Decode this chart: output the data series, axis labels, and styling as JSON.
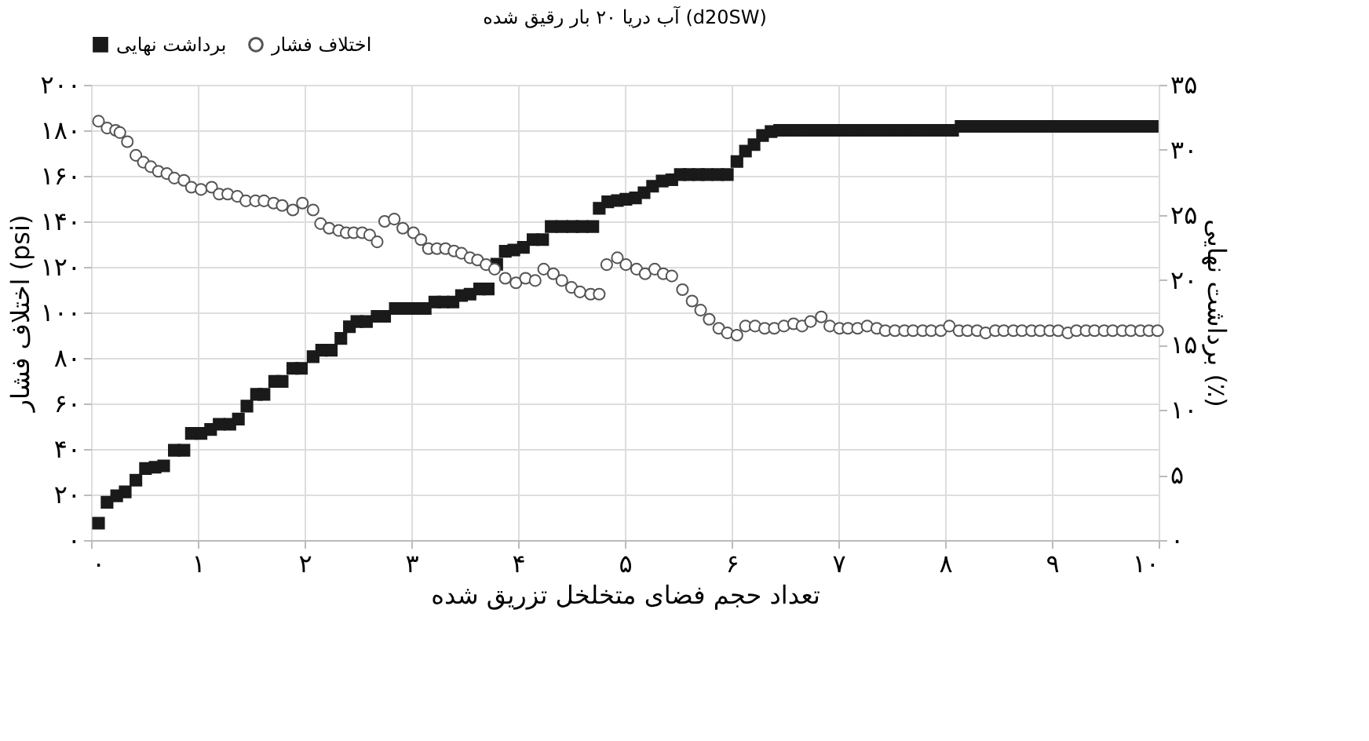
{
  "chart_data": {
    "type": "scatter",
    "title": "آب دریا ۲۰ بار رقیق شده (d20SW)",
    "xlabel": "تعداد حجم فضای متخلخل تزریق شده",
    "ylabel": "اختلاف فشار (psi)",
    "y2label": "برداشت نهایی (٪)",
    "xlim": [
      0,
      10
    ],
    "ylim": [
      0,
      200
    ],
    "y2lim": [
      0,
      35
    ],
    "xticks": [
      {
        "value": 0,
        "label": "۰"
      },
      {
        "value": 1,
        "label": "۱"
      },
      {
        "value": 2,
        "label": "۲"
      },
      {
        "value": 3,
        "label": "۳"
      },
      {
        "value": 4,
        "label": "۴"
      },
      {
        "value": 5,
        "label": "۵"
      },
      {
        "value": 6,
        "label": "۶"
      },
      {
        "value": 7,
        "label": "۷"
      },
      {
        "value": 8,
        "label": "۸"
      },
      {
        "value": 9,
        "label": "۹"
      },
      {
        "value": 10,
        "label": "۱۰"
      }
    ],
    "yticks": [
      {
        "value": 0,
        "label": "۰"
      },
      {
        "value": 20,
        "label": "۲۰"
      },
      {
        "value": 40,
        "label": "۴۰"
      },
      {
        "value": 60,
        "label": "۶۰"
      },
      {
        "value": 80,
        "label": "۸۰"
      },
      {
        "value": 100,
        "label": "۱۰۰"
      },
      {
        "value": 120,
        "label": "۱۲۰"
      },
      {
        "value": 140,
        "label": "۱۴۰"
      },
      {
        "value": 160,
        "label": "۱۶۰"
      },
      {
        "value": 180,
        "label": "۱۸۰"
      },
      {
        "value": 200,
        "label": "۲۰۰"
      }
    ],
    "y2ticks": [
      {
        "value": 0,
        "label": "۰"
      },
      {
        "value": 5,
        "label": "۵"
      },
      {
        "value": 10,
        "label": "۱۰"
      },
      {
        "value": 15,
        "label": "۱۵"
      },
      {
        "value": 20,
        "label": "۲۰"
      },
      {
        "value": 25,
        "label": "۲۵"
      },
      {
        "value": 30,
        "label": "۳۰"
      },
      {
        "value": 35,
        "label": "۳۵"
      }
    ],
    "grid": true,
    "legend": "top",
    "series": [
      {
        "name": "برداشت نهایی",
        "color": "#1a1a1a",
        "marker": "square",
        "axis": "y2",
        "x": [
          0.07,
          0.15,
          0.24,
          0.32,
          0.42,
          0.51,
          0.6,
          0.68,
          0.78,
          0.87,
          0.94,
          1.03,
          1.12,
          1.2,
          1.3,
          1.38,
          1.46,
          1.55,
          1.62,
          1.72,
          1.79,
          1.89,
          1.97,
          2.08,
          2.16,
          2.25,
          2.34,
          2.42,
          2.49,
          2.58,
          2.68,
          2.75,
          2.85,
          2.94,
          3.04,
          3.13,
          3.22,
          3.3,
          3.39,
          3.47,
          3.55,
          3.64,
          3.72,
          3.8,
          3.88,
          3.96,
          4.05,
          4.14,
          4.23,
          4.31,
          4.41,
          4.51,
          4.6,
          4.7,
          4.76,
          4.84,
          4.93,
          5.01,
          5.1,
          5.18,
          5.26,
          5.35,
          5.44,
          5.52,
          5.6,
          5.69,
          5.77,
          5.87,
          5.96,
          6.05,
          6.13,
          6.21,
          6.29,
          6.37,
          6.45,
          6.54,
          6.62,
          6.71,
          6.79,
          6.88,
          6.96,
          7.05,
          7.13,
          7.22,
          7.3,
          7.39,
          7.47,
          7.56,
          7.64,
          7.73,
          7.81,
          7.9,
          7.98,
          8.07,
          8.15,
          8.24,
          8.32,
          8.41,
          8.49,
          8.58,
          8.66,
          8.75,
          8.83,
          8.92,
          9.0,
          9.09,
          9.17,
          9.26,
          9.34,
          9.43,
          9.51,
          9.6,
          9.68,
          9.77,
          9.85,
          9.94
        ],
        "values": [
          1.3,
          2.9,
          3.4,
          3.7,
          4.6,
          5.5,
          5.6,
          5.7,
          6.9,
          6.9,
          8.2,
          8.2,
          8.5,
          8.9,
          8.9,
          9.3,
          10.3,
          11.2,
          11.2,
          12.2,
          12.2,
          13.2,
          13.2,
          14.1,
          14.6,
          14.6,
          15.5,
          16.4,
          16.8,
          16.8,
          17.2,
          17.2,
          17.8,
          17.8,
          17.8,
          17.8,
          18.3,
          18.3,
          18.3,
          18.8,
          18.9,
          19.3,
          19.3,
          21.2,
          22.2,
          22.3,
          22.5,
          23.1,
          23.1,
          24.1,
          24.1,
          24.1,
          24.1,
          24.1,
          25.5,
          26.0,
          26.1,
          26.2,
          26.3,
          26.7,
          27.2,
          27.6,
          27.7,
          28.1,
          28.1,
          28.1,
          28.1,
          28.1,
          28.1,
          29.1,
          29.9,
          30.4,
          31.1,
          31.4,
          31.5,
          31.5,
          31.5,
          31.5,
          31.5,
          31.5,
          31.5,
          31.5,
          31.5,
          31.5,
          31.5,
          31.5,
          31.5,
          31.5,
          31.5,
          31.5,
          31.5,
          31.5,
          31.5,
          31.5,
          31.8,
          31.8,
          31.8,
          31.8,
          31.8,
          31.8,
          31.8,
          31.8,
          31.8,
          31.8,
          31.8,
          31.8,
          31.8,
          31.8,
          31.8,
          31.8,
          31.8,
          31.8,
          31.8,
          31.8,
          31.8,
          31.8
        ]
      },
      {
        "name": "اختلاف فشار",
        "color": "#555555",
        "marker": "circle",
        "axis": "y",
        "x": [
          0.07,
          0.15,
          0.23,
          0.27,
          0.34,
          0.42,
          0.49,
          0.56,
          0.63,
          0.71,
          0.78,
          0.87,
          0.94,
          1.03,
          1.13,
          1.2,
          1.28,
          1.37,
          1.45,
          1.54,
          1.62,
          1.71,
          1.79,
          1.89,
          1.98,
          2.08,
          2.15,
          2.23,
          2.32,
          2.39,
          2.46,
          2.54,
          2.61,
          2.68,
          2.75,
          2.84,
          2.92,
          3.02,
          3.09,
          3.16,
          3.24,
          3.32,
          3.4,
          3.47,
          3.55,
          3.62,
          3.7,
          3.78,
          3.88,
          3.98,
          4.07,
          4.16,
          4.24,
          4.33,
          4.41,
          4.5,
          4.58,
          4.68,
          4.76,
          4.83,
          4.93,
          5.01,
          5.11,
          5.19,
          5.28,
          5.36,
          5.44,
          5.54,
          5.63,
          5.71,
          5.79,
          5.88,
          5.96,
          6.05,
          6.13,
          6.22,
          6.31,
          6.4,
          6.49,
          6.58,
          6.66,
          6.74,
          6.84,
          6.92,
          7.01,
          7.09,
          7.18,
          7.27,
          7.36,
          7.44,
          7.53,
          7.62,
          7.7,
          7.79,
          7.87,
          7.96,
          8.04,
          8.13,
          8.21,
          8.3,
          8.38,
          8.47,
          8.55,
          8.64,
          8.72,
          8.81,
          8.89,
          8.98,
          9.06,
          9.15,
          9.23,
          9.32,
          9.4,
          9.49,
          9.57,
          9.66,
          9.74,
          9.83,
          9.91,
          9.99
        ],
        "values": [
          184,
          181,
          180,
          179,
          175,
          169,
          166,
          164,
          162,
          161,
          159,
          158,
          155,
          154,
          155,
          152,
          152,
          151,
          149,
          149,
          149,
          148,
          147,
          145,
          148,
          145,
          139,
          137,
          136,
          135,
          135,
          135,
          134,
          131,
          140,
          141,
          137,
          135,
          132,
          128,
          128,
          128,
          127,
          126,
          124,
          123,
          121,
          119,
          115,
          113,
          115,
          114,
          119,
          117,
          114,
          111,
          109,
          108,
          108,
          121,
          124,
          121,
          119,
          117,
          119,
          117,
          116,
          110,
          105,
          101,
          97,
          93,
          91,
          90,
          94,
          94,
          93,
          93,
          94,
          95,
          94,
          96,
          98,
          94,
          93,
          93,
          93,
          94,
          93,
          92,
          92,
          92,
          92,
          92,
          92,
          92,
          94,
          92,
          92,
          92,
          91,
          92,
          92,
          92,
          92,
          92,
          92,
          92,
          92,
          91,
          92,
          92,
          92,
          92,
          92,
          92,
          92,
          92,
          92,
          92
        ]
      }
    ]
  }
}
